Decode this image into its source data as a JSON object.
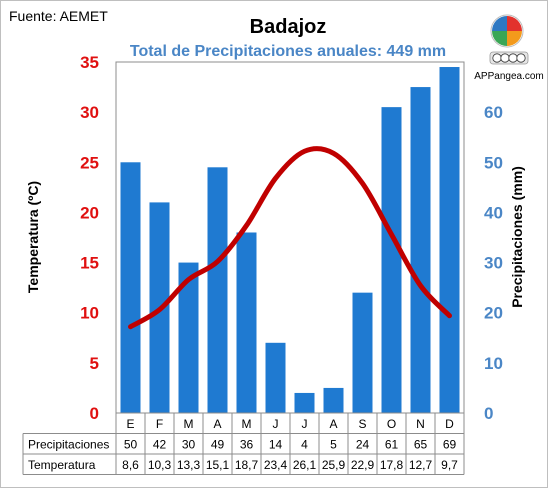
{
  "source": "Fuente: AEMET",
  "brand": {
    "name": "APPangea.com",
    "license_badge": "cc by nc sa",
    "logo_colors": [
      "#e2322d",
      "#f39a1c",
      "#3aa655",
      "#2e78c2"
    ]
  },
  "colors": {
    "bars": "#1f7ad1",
    "line": "#c00000",
    "left_axis": "#e01010",
    "right_axis": "#4a86c6",
    "subtitle": "#4a86c6"
  },
  "chart_data": {
    "type": "bar",
    "title": "Badajoz",
    "subtitle": "Total de Precipitaciones anuales: 449 mm",
    "categories": [
      "E",
      "F",
      "M",
      "A",
      "M",
      "J",
      "J",
      "A",
      "S",
      "O",
      "N",
      "D"
    ],
    "series": [
      {
        "name": "Precipitaciones",
        "type": "bar",
        "axis": "right",
        "values": [
          50,
          42,
          30,
          49,
          36,
          14,
          4,
          5,
          24,
          61,
          65,
          69
        ]
      },
      {
        "name": "Temperatura",
        "type": "line",
        "axis": "left",
        "values": [
          8.6,
          10.3,
          13.3,
          15.1,
          18.7,
          23.4,
          26.1,
          25.9,
          22.9,
          17.8,
          12.7,
          9.7
        ]
      }
    ],
    "y_left": {
      "label": "Temperatura (ºC)",
      "range": [
        0,
        35
      ],
      "ticks": [
        0,
        5,
        10,
        15,
        20,
        25,
        30,
        35
      ]
    },
    "y_right": {
      "label": "Precipitaciones (mm)",
      "range": [
        0,
        70
      ],
      "ticks": [
        0,
        10,
        20,
        30,
        40,
        50,
        60
      ]
    },
    "table": {
      "rows": [
        {
          "label": "Precipitaciones",
          "values": [
            "50",
            "42",
            "30",
            "49",
            "36",
            "14",
            "4",
            "5",
            "24",
            "61",
            "65",
            "69"
          ]
        },
        {
          "label": "Temperatura",
          "values": [
            "8,6",
            "10,3",
            "13,3",
            "15,1",
            "18,7",
            "23,4",
            "26,1",
            "25,9",
            "22,9",
            "17,8",
            "12,7",
            "9,7"
          ]
        }
      ]
    },
    "grid": false,
    "legend": "table-below"
  }
}
